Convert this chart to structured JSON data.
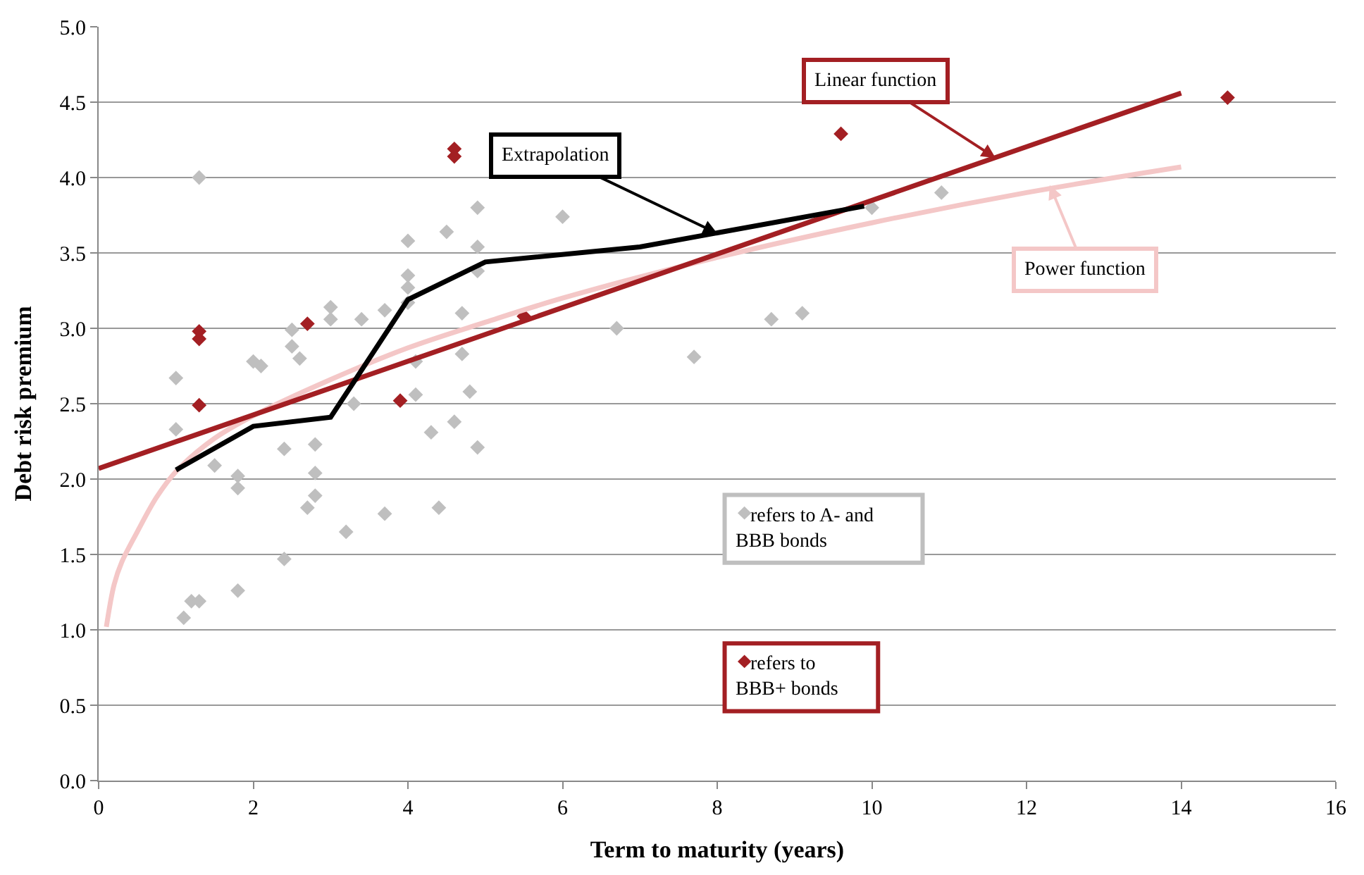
{
  "chart_data": {
    "type": "scatter",
    "xlabel": "Term to maturity (years)",
    "ylabel": "Debt risk premium",
    "xlim": [
      0,
      16
    ],
    "xticks": [
      0,
      2,
      4,
      6,
      8,
      10,
      12,
      14,
      16
    ],
    "ylim": [
      0,
      5
    ],
    "yticks": [
      {
        "value": 0,
        "label": "0.0"
      },
      {
        "value": 0.5,
        "label": "0.5"
      },
      {
        "value": 1,
        "label": "1.0"
      },
      {
        "value": 1.5,
        "label": "1.5"
      },
      {
        "value": 2,
        "label": "2.0"
      },
      {
        "value": 2.5,
        "label": "2.5"
      },
      {
        "value": 3,
        "label": "3.0"
      },
      {
        "value": 3.5,
        "label": "3.5"
      },
      {
        "value": 4,
        "label": "4.0"
      },
      {
        "value": 4.5,
        "label": "4.5"
      },
      {
        "value": 5,
        "label": "5.0"
      }
    ],
    "grid": "y",
    "marker": "diamond",
    "legend": "bottom",
    "series": [
      {
        "name": "refers to A- and BBB bonds",
        "color": "#bfbfbf",
        "x": [
          1.0,
          1.0,
          1.1,
          1.2,
          1.3,
          1.3,
          1.5,
          1.8,
          1.8,
          1.8,
          2.0,
          2.1,
          2.4,
          2.4,
          2.5,
          2.5,
          2.6,
          2.7,
          2.8,
          2.8,
          2.8,
          3.0,
          3.0,
          3.2,
          3.3,
          3.4,
          3.7,
          3.7,
          4.0,
          4.0,
          4.0,
          4.0,
          4.1,
          4.1,
          4.3,
          4.4,
          4.5,
          4.6,
          4.7,
          4.7,
          4.8,
          4.9,
          4.9,
          4.9,
          4.9,
          6.0,
          6.7,
          7.7,
          8.7,
          9.1,
          10.0,
          10.9
        ],
        "values": [
          2.67,
          2.33,
          1.08,
          1.19,
          1.19,
          4.0,
          2.09,
          2.02,
          1.94,
          1.26,
          2.78,
          2.75,
          2.2,
          1.47,
          2.99,
          2.88,
          2.8,
          1.81,
          2.23,
          2.04,
          1.89,
          3.14,
          3.06,
          1.65,
          2.5,
          3.06,
          1.77,
          3.12,
          3.58,
          3.35,
          3.27,
          3.17,
          2.78,
          2.56,
          2.31,
          1.81,
          3.64,
          2.38,
          3.1,
          2.83,
          2.58,
          3.8,
          3.54,
          3.38,
          2.21,
          3.74,
          3.0,
          2.81,
          3.06,
          3.1,
          3.8,
          3.9
        ]
      },
      {
        "name": "refers to BBB+ bonds",
        "color": "#a31f23",
        "x": [
          1.3,
          1.3,
          1.3,
          2.7,
          3.9,
          4.6,
          4.6,
          5.5,
          9.6,
          14.6
        ],
        "values": [
          2.93,
          2.98,
          2.49,
          3.03,
          2.52,
          4.19,
          4.14,
          3.08,
          4.29,
          4.53
        ]
      },
      {
        "type": "line",
        "marker": "none",
        "color": "#f4c7c7",
        "x": [
          0.1,
          0.2,
          0.3,
          0.5,
          0.75,
          1,
          1.5,
          2,
          3,
          4,
          5,
          6,
          8,
          10,
          12,
          14
        ],
        "values": [
          1.02,
          1.3,
          1.45,
          1.65,
          1.88,
          2.05,
          2.27,
          2.42,
          2.66,
          2.87,
          3.04,
          3.2,
          3.47,
          3.7,
          3.9,
          4.07
        ]
      },
      {
        "type": "line",
        "marker": "none",
        "color": "#a31f23",
        "x": [
          0,
          14
        ],
        "values": [
          2.07,
          4.56
        ]
      },
      {
        "type": "line",
        "marker": "none",
        "color": "#000000",
        "x": [
          1,
          2,
          3,
          4,
          5,
          7,
          9.9
        ],
        "values": [
          2.06,
          2.35,
          2.41,
          3.19,
          3.44,
          3.54,
          3.81
        ]
      }
    ],
    "annotations": [
      {
        "text": "Extrapolation",
        "x": 8.0,
        "y": 3.63
      },
      {
        "text": "Linear function",
        "x": 11.6,
        "y": 4.13
      },
      {
        "text": "Power function",
        "x": 12.3,
        "y": 3.95
      }
    ]
  }
}
